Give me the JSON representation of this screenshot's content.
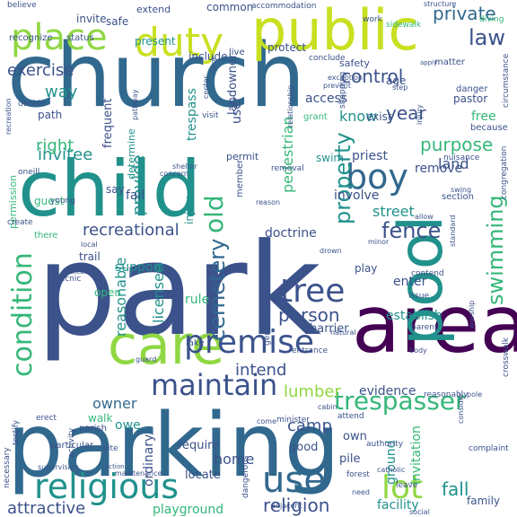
{
  "colors": {
    "purple": "#440154",
    "indigo": "#3b528b",
    "blue": "#31688e",
    "teal": "#21918c",
    "green": "#35b779",
    "lime": "#90d743",
    "yellow": "#c8e020"
  },
  "words": [
    {
      "text": "park",
      "color": "indigo"
    },
    {
      "text": "parking",
      "color": "blue"
    },
    {
      "text": "church",
      "color": "blue"
    },
    {
      "text": "child",
      "color": "teal"
    },
    {
      "text": "public",
      "color": "yellow"
    },
    {
      "text": "area",
      "color": "purple"
    },
    {
      "text": "care",
      "color": "lime"
    },
    {
      "text": "pool",
      "color": "teal"
    },
    {
      "text": "duty",
      "color": "yellow"
    },
    {
      "text": "place",
      "color": "lime"
    },
    {
      "text": "boy",
      "color": "blue"
    },
    {
      "text": "use",
      "color": "blue"
    },
    {
      "text": "religious",
      "color": "teal"
    },
    {
      "text": "premise",
      "color": "indigo"
    },
    {
      "text": "lot",
      "color": "lime"
    },
    {
      "text": "tree",
      "color": "indigo"
    },
    {
      "text": "maintain",
      "color": "indigo"
    },
    {
      "text": "condition",
      "color": "green"
    },
    {
      "text": "swimming",
      "color": "green"
    },
    {
      "text": "trespasser",
      "color": "green"
    },
    {
      "text": "law",
      "color": "indigo"
    },
    {
      "text": "fence",
      "color": "indigo"
    },
    {
      "text": "control",
      "color": "indigo"
    },
    {
      "text": "exercise",
      "color": "indigo"
    },
    {
      "text": "private",
      "color": "blue"
    },
    {
      "text": "invitee",
      "color": "teal"
    },
    {
      "text": "year",
      "color": "indigo"
    },
    {
      "text": "way",
      "color": "teal"
    },
    {
      "text": "know",
      "color": "teal"
    },
    {
      "text": "old",
      "color": "green"
    },
    {
      "text": "cemetery",
      "color": "blue"
    },
    {
      "text": "property",
      "color": "teal"
    },
    {
      "text": "recreational",
      "color": "indigo"
    },
    {
      "text": "purpose",
      "color": "green"
    },
    {
      "text": "person",
      "color": "indigo"
    },
    {
      "text": "right",
      "color": "green"
    },
    {
      "text": "provide",
      "color": "teal"
    },
    {
      "text": "fall",
      "color": "teal"
    },
    {
      "text": "religion",
      "color": "indigo"
    },
    {
      "text": "attractive",
      "color": "indigo"
    },
    {
      "text": "playground",
      "color": "green"
    },
    {
      "text": "home",
      "color": "indigo"
    },
    {
      "text": "intend",
      "color": "indigo"
    },
    {
      "text": "lumber",
      "color": "lime"
    },
    {
      "text": "owner",
      "color": "blue"
    },
    {
      "text": "camp",
      "color": "indigo"
    },
    {
      "text": "reasonable",
      "color": "teal"
    },
    {
      "text": "licensee",
      "color": "teal"
    },
    {
      "text": "pedestrian",
      "color": "green"
    },
    {
      "text": "land",
      "color": "indigo"
    },
    {
      "text": "street",
      "color": "teal"
    },
    {
      "text": "invitation",
      "color": "green"
    },
    {
      "text": "ground",
      "color": "teal"
    },
    {
      "text": "facility",
      "color": "teal"
    },
    {
      "text": "family",
      "color": "indigo"
    },
    {
      "text": "evidence",
      "color": "indigo"
    },
    {
      "text": "user",
      "color": "indigo"
    },
    {
      "text": "free",
      "color": "green"
    },
    {
      "text": "doctrine",
      "color": "indigo"
    },
    {
      "text": "ordinary",
      "color": "indigo"
    },
    {
      "text": "establish",
      "color": "teal"
    },
    {
      "text": "require",
      "color": "indigo"
    },
    {
      "text": "locate",
      "color": "indigo"
    },
    {
      "text": "owe",
      "color": "teal"
    },
    {
      "text": "good",
      "color": "indigo"
    },
    {
      "text": "own",
      "color": "indigo"
    },
    {
      "text": "pile",
      "color": "indigo"
    },
    {
      "text": "enter",
      "color": "indigo"
    },
    {
      "text": "open",
      "color": "green"
    },
    {
      "text": "support",
      "color": "teal"
    },
    {
      "text": "rule",
      "color": "green"
    },
    {
      "text": "walk",
      "color": "green"
    },
    {
      "text": "play",
      "color": "indigo"
    },
    {
      "text": "path",
      "color": "indigo"
    },
    {
      "text": "guest",
      "color": "green"
    },
    {
      "text": "fail",
      "color": "indigo"
    },
    {
      "text": "involve",
      "color": "indigo"
    },
    {
      "text": "remove",
      "color": "indigo"
    },
    {
      "text": "priest",
      "color": "indigo"
    },
    {
      "text": "exist",
      "color": "indigo"
    },
    {
      "text": "access",
      "color": "indigo"
    },
    {
      "text": "safety",
      "color": "indigo"
    },
    {
      "text": "age",
      "color": "indigo"
    },
    {
      "text": "pastor",
      "color": "indigo"
    },
    {
      "text": "frequent",
      "color": "indigo"
    },
    {
      "text": "trespass",
      "color": "teal"
    },
    {
      "text": "protect",
      "color": "indigo"
    },
    {
      "text": "present",
      "color": "teal"
    },
    {
      "text": "include",
      "color": "indigo"
    },
    {
      "text": "common",
      "color": "indigo"
    },
    {
      "text": "safe",
      "color": "indigo"
    },
    {
      "text": "invite",
      "color": "indigo"
    },
    {
      "text": "extend",
      "color": "indigo"
    },
    {
      "text": "determine",
      "color": "teal"
    },
    {
      "text": "injure",
      "color": "teal"
    },
    {
      "text": "landowner",
      "color": "indigo"
    },
    {
      "text": "swim",
      "color": "teal"
    },
    {
      "text": "say",
      "color": "indigo"
    },
    {
      "text": "trail",
      "color": "indigo"
    },
    {
      "text": "there",
      "color": "green"
    },
    {
      "text": "barrier",
      "color": "indigo"
    },
    {
      "text": "lake",
      "color": "indigo"
    },
    {
      "text": "camp",
      "color": "indigo"
    },
    {
      "text": "recognize",
      "color": "indigo"
    },
    {
      "text": "status",
      "color": "indigo"
    },
    {
      "text": "permission",
      "color": "green"
    },
    {
      "text": "young",
      "color": "indigo"
    },
    {
      "text": "member",
      "color": "indigo"
    },
    {
      "text": "permit",
      "color": "indigo"
    },
    {
      "text": "visit",
      "color": "indigo"
    },
    {
      "text": "grant",
      "color": "green"
    },
    {
      "text": "section",
      "color": "indigo"
    },
    {
      "text": "nuisance",
      "color": "indigo"
    },
    {
      "text": "because",
      "color": "indigo"
    },
    {
      "text": "danger",
      "color": "indigo"
    },
    {
      "text": "matter",
      "color": "indigo"
    },
    {
      "text": "live",
      "color": "indigo"
    },
    {
      "text": "work",
      "color": "indigo"
    },
    {
      "text": "sidewalk",
      "color": "green"
    },
    {
      "text": "diving",
      "color": "green"
    },
    {
      "text": "believe",
      "color": "indigo"
    },
    {
      "text": "accommodation",
      "color": "indigo"
    },
    {
      "text": "structure",
      "color": "indigo"
    },
    {
      "text": "conclude",
      "color": "indigo"
    },
    {
      "text": "swing",
      "color": "indigo"
    },
    {
      "text": "circumstance",
      "color": "indigo"
    },
    {
      "text": "congregation",
      "color": "indigo"
    },
    {
      "text": "crosswalk",
      "color": "indigo"
    },
    {
      "text": "worship",
      "color": "indigo"
    },
    {
      "text": "issue",
      "color": "indigo"
    },
    {
      "text": "contend",
      "color": "indigo"
    },
    {
      "text": "body",
      "color": "indigo"
    },
    {
      "text": "minister",
      "color": "indigo"
    },
    {
      "text": "attend",
      "color": "indigo"
    },
    {
      "text": "authority",
      "color": "indigo"
    },
    {
      "text": "forest",
      "color": "indigo"
    },
    {
      "text": "leave",
      "color": "indigo"
    },
    {
      "text": "need",
      "color": "indigo"
    },
    {
      "text": "catholic",
      "color": "indigo"
    },
    {
      "text": "complaint",
      "color": "indigo"
    },
    {
      "text": "social",
      "color": "indigo"
    },
    {
      "text": "activity",
      "color": "indigo"
    },
    {
      "text": "testify",
      "color": "indigo"
    },
    {
      "text": "necessary",
      "color": "indigo"
    },
    {
      "text": "particular",
      "color": "indigo"
    },
    {
      "text": "parish",
      "color": "indigo"
    },
    {
      "text": "erect",
      "color": "indigo"
    },
    {
      "text": "dangerous",
      "color": "indigo"
    },
    {
      "text": "maintenance",
      "color": "indigo"
    },
    {
      "text": "supervision",
      "color": "indigo"
    },
    {
      "text": "action",
      "color": "indigo"
    },
    {
      "text": "cite",
      "color": "indigo"
    },
    {
      "text": "picnic",
      "color": "indigo"
    },
    {
      "text": "indicate",
      "color": "indigo"
    },
    {
      "text": "general",
      "color": "indigo"
    },
    {
      "text": "entrance",
      "color": "indigo"
    },
    {
      "text": "natural",
      "color": "indigo"
    },
    {
      "text": "parent",
      "color": "indigo"
    },
    {
      "text": "reasonably",
      "color": "indigo"
    },
    {
      "text": "consider",
      "color": "indigo"
    },
    {
      "text": "minor",
      "color": "indigo"
    },
    {
      "text": "drown",
      "color": "indigo"
    },
    {
      "text": "local",
      "color": "indigo"
    },
    {
      "text": "create",
      "color": "indigo"
    },
    {
      "text": "reason",
      "color": "indigo"
    },
    {
      "text": "removal",
      "color": "indigo"
    },
    {
      "text": "concern",
      "color": "indigo"
    },
    {
      "text": "shelter",
      "color": "indigo"
    },
    {
      "text": "decide",
      "color": "indigo"
    },
    {
      "text": "recreation",
      "color": "indigo"
    },
    {
      "text": "center",
      "color": "indigo"
    },
    {
      "text": "relationship",
      "color": "indigo"
    },
    {
      "text": "exception",
      "color": "indigo"
    },
    {
      "text": "prevent",
      "color": "indigo"
    },
    {
      "text": "shopping",
      "color": "indigo"
    },
    {
      "text": "injury",
      "color": "indigo"
    },
    {
      "text": "allow",
      "color": "indigo"
    },
    {
      "text": "standard",
      "color": "indigo"
    },
    {
      "text": "freedom",
      "color": "indigo"
    },
    {
      "text": "pathway",
      "color": "indigo"
    },
    {
      "text": "oneill",
      "color": "indigo"
    },
    {
      "text": "step",
      "color": "indigo"
    },
    {
      "text": "apply",
      "color": "indigo"
    },
    {
      "text": "large",
      "color": "indigo"
    },
    {
      "text": "cabin",
      "color": "indigo"
    },
    {
      "text": "guard",
      "color": "indigo"
    },
    {
      "text": "pole",
      "color": "indigo"
    },
    {
      "text": "come",
      "color": "indigo"
    },
    {
      "text": "adjacent",
      "color": "indigo"
    }
  ]
}
